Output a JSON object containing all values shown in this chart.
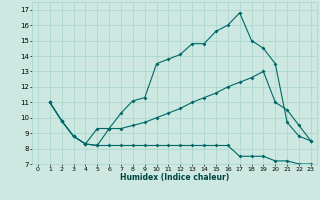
{
  "xlabel": "Humidex (Indice chaleur)",
  "bg_color": "#cce8e0",
  "line_color": "#006868",
  "grid_color": "#a8d4cc",
  "xlim": [
    -0.5,
    23.5
  ],
  "ylim": [
    7,
    17.5
  ],
  "xticks": [
    0,
    1,
    2,
    3,
    4,
    5,
    6,
    7,
    8,
    9,
    10,
    11,
    12,
    13,
    14,
    15,
    16,
    17,
    18,
    19,
    20,
    21,
    22,
    23
  ],
  "yticks": [
    7,
    8,
    9,
    10,
    11,
    12,
    13,
    14,
    15,
    16,
    17
  ],
  "line1_x": [
    1,
    2,
    3,
    4,
    5,
    6,
    7,
    8,
    9,
    10,
    11,
    12,
    13,
    14,
    15,
    16,
    17,
    18,
    19,
    20,
    21,
    22,
    23
  ],
  "line1_y": [
    11.0,
    9.8,
    8.8,
    8.3,
    8.2,
    9.3,
    10.3,
    11.1,
    11.3,
    13.5,
    13.8,
    14.1,
    14.8,
    14.8,
    15.6,
    16.0,
    16.8,
    15.0,
    14.5,
    13.5,
    9.7,
    8.8,
    8.5
  ],
  "line2_x": [
    1,
    2,
    3,
    4,
    5,
    6,
    7,
    8,
    9,
    10,
    11,
    12,
    13,
    14,
    15,
    16,
    17,
    18,
    19,
    20,
    21,
    22,
    23
  ],
  "line2_y": [
    11.0,
    9.8,
    8.8,
    8.3,
    8.2,
    8.2,
    8.2,
    8.2,
    8.2,
    8.2,
    8.2,
    8.2,
    8.2,
    8.2,
    8.2,
    8.2,
    7.5,
    7.5,
    7.5,
    7.2,
    7.2,
    7.0,
    7.0
  ],
  "line3_x": [
    1,
    2,
    3,
    4,
    5,
    6,
    7,
    8,
    9,
    10,
    11,
    12,
    13,
    14,
    15,
    16,
    17,
    18,
    19,
    20,
    21,
    22,
    23
  ],
  "line3_y": [
    11.0,
    9.8,
    8.8,
    8.3,
    9.3,
    9.3,
    9.3,
    9.5,
    9.7,
    10.0,
    10.3,
    10.6,
    11.0,
    11.3,
    11.6,
    12.0,
    12.3,
    12.6,
    13.0,
    11.0,
    10.5,
    9.5,
    8.5
  ]
}
